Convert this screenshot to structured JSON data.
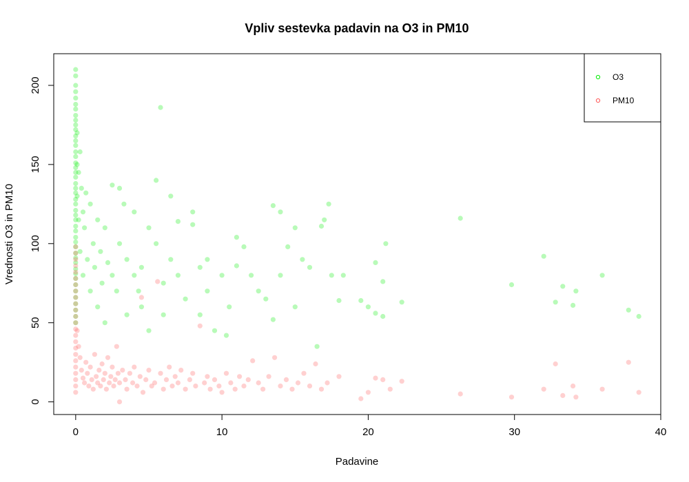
{
  "chart_data": {
    "type": "scatter",
    "title": "Vpliv sestevka padavin na O3 in PM10",
    "xlabel": "Padavine",
    "ylabel": "Vrednosti O3 in PM10",
    "xlim": [
      -1.5,
      40
    ],
    "ylim": [
      -8,
      220
    ],
    "xticks": [
      0,
      10,
      20,
      30,
      40
    ],
    "yticks": [
      0,
      50,
      100,
      150,
      200
    ],
    "legend_position": "top-right",
    "grid": false,
    "series": [
      {
        "name": "O3",
        "color": "#00ee00",
        "points": [
          [
            0,
            210
          ],
          [
            0,
            206
          ],
          [
            0,
            200
          ],
          [
            0,
            196
          ],
          [
            0,
            192
          ],
          [
            0,
            188
          ],
          [
            0,
            185
          ],
          [
            0,
            181
          ],
          [
            0,
            178
          ],
          [
            0,
            175
          ],
          [
            0,
            172
          ],
          [
            0,
            168
          ],
          [
            0,
            165
          ],
          [
            0,
            162
          ],
          [
            0,
            158
          ],
          [
            0,
            155
          ],
          [
            0,
            151
          ],
          [
            0,
            148
          ],
          [
            0,
            145
          ],
          [
            0,
            142
          ],
          [
            0,
            138
          ],
          [
            0,
            135
          ],
          [
            0,
            132
          ],
          [
            0,
            128
          ],
          [
            0,
            125
          ],
          [
            0,
            121
          ],
          [
            0,
            118
          ],
          [
            0,
            115
          ],
          [
            0,
            111
          ],
          [
            0,
            108
          ],
          [
            0,
            104
          ],
          [
            0,
            101
          ],
          [
            0,
            98
          ],
          [
            0,
            94
          ],
          [
            0,
            91
          ],
          [
            0,
            88
          ],
          [
            0,
            84
          ],
          [
            0,
            81
          ],
          [
            0,
            78
          ],
          [
            0,
            74
          ],
          [
            0,
            70
          ],
          [
            0,
            66
          ],
          [
            0,
            62
          ],
          [
            0,
            58
          ],
          [
            0,
            54
          ],
          [
            0,
            50
          ],
          [
            0.1,
            170
          ],
          [
            0.1,
            150
          ],
          [
            0.1,
            130
          ],
          [
            0.2,
            145
          ],
          [
            0.2,
            115
          ],
          [
            0.3,
            158
          ],
          [
            0.3,
            95
          ],
          [
            0.4,
            135
          ],
          [
            0.5,
            120
          ],
          [
            0.5,
            80
          ],
          [
            0.6,
            110
          ],
          [
            0.7,
            132
          ],
          [
            0.8,
            90
          ],
          [
            1.0,
            125
          ],
          [
            1.0,
            70
          ],
          [
            1.2,
            100
          ],
          [
            1.3,
            85
          ],
          [
            1.5,
            115
          ],
          [
            1.5,
            60
          ],
          [
            1.7,
            95
          ],
          [
            1.8,
            75
          ],
          [
            2.0,
            110
          ],
          [
            2.0,
            50
          ],
          [
            2.2,
            88
          ],
          [
            2.5,
            137
          ],
          [
            2.5,
            80
          ],
          [
            2.8,
            70
          ],
          [
            3.0,
            135
          ],
          [
            3.0,
            100
          ],
          [
            3.3,
            125
          ],
          [
            3.5,
            90
          ],
          [
            3.5,
            55
          ],
          [
            4.0,
            120
          ],
          [
            4.0,
            80
          ],
          [
            4.3,
            70
          ],
          [
            4.5,
            85
          ],
          [
            4.5,
            60
          ],
          [
            5.0,
            110
          ],
          [
            5.0,
            45
          ],
          [
            5.5,
            100
          ],
          [
            5.5,
            140
          ],
          [
            5.8,
            186
          ],
          [
            6.0,
            75
          ],
          [
            6.0,
            55
          ],
          [
            6.5,
            90
          ],
          [
            6.5,
            130
          ],
          [
            7.0,
            80
          ],
          [
            7.0,
            114
          ],
          [
            7.5,
            65
          ],
          [
            8.0,
            120
          ],
          [
            8.0,
            112
          ],
          [
            8.5,
            85
          ],
          [
            8.5,
            55
          ],
          [
            9.0,
            90
          ],
          [
            9.0,
            70
          ],
          [
            9.5,
            45
          ],
          [
            10.0,
            80
          ],
          [
            10.3,
            42
          ],
          [
            10.5,
            60
          ],
          [
            11.0,
            104
          ],
          [
            11.0,
            86
          ],
          [
            11.5,
            98
          ],
          [
            12.0,
            80
          ],
          [
            12.5,
            70
          ],
          [
            13.0,
            65
          ],
          [
            13.5,
            124
          ],
          [
            13.5,
            52
          ],
          [
            14.0,
            120
          ],
          [
            14.0,
            80
          ],
          [
            14.5,
            98
          ],
          [
            15.0,
            110
          ],
          [
            15.0,
            60
          ],
          [
            15.5,
            90
          ],
          [
            16.0,
            85
          ],
          [
            16.5,
            35
          ],
          [
            16.8,
            111
          ],
          [
            17.0,
            115
          ],
          [
            17.3,
            125
          ],
          [
            17.5,
            80
          ],
          [
            18.0,
            64
          ],
          [
            18.3,
            80
          ],
          [
            19.5,
            64
          ],
          [
            20.0,
            60
          ],
          [
            20.5,
            56
          ],
          [
            20.5,
            88
          ],
          [
            21.0,
            54
          ],
          [
            21.2,
            100
          ],
          [
            21.0,
            76
          ],
          [
            22.3,
            63
          ],
          [
            26.3,
            116
          ],
          [
            29.8,
            74
          ],
          [
            32.0,
            92
          ],
          [
            32.8,
            63
          ],
          [
            33.3,
            73
          ],
          [
            34.0,
            61
          ],
          [
            34.2,
            70
          ],
          [
            36.0,
            80
          ],
          [
            37.8,
            58
          ],
          [
            38.5,
            54
          ]
        ]
      },
      {
        "name": "PM10",
        "color": "#ff5555",
        "points": [
          [
            0,
            98
          ],
          [
            0,
            94
          ],
          [
            0,
            90
          ],
          [
            0,
            86
          ],
          [
            0,
            82
          ],
          [
            0,
            78
          ],
          [
            0,
            74
          ],
          [
            0,
            70
          ],
          [
            0,
            66
          ],
          [
            0,
            62
          ],
          [
            0,
            58
          ],
          [
            0,
            54
          ],
          [
            0,
            50
          ],
          [
            0,
            46
          ],
          [
            0,
            42
          ],
          [
            0,
            38
          ],
          [
            0,
            34
          ],
          [
            0,
            30
          ],
          [
            0,
            26
          ],
          [
            0,
            22
          ],
          [
            0,
            18
          ],
          [
            0,
            14
          ],
          [
            0,
            10
          ],
          [
            0,
            6
          ],
          [
            0.1,
            45
          ],
          [
            0.2,
            35
          ],
          [
            0.3,
            28
          ],
          [
            0.4,
            20
          ],
          [
            0.5,
            15
          ],
          [
            0.6,
            12
          ],
          [
            0.7,
            25
          ],
          [
            0.8,
            18
          ],
          [
            0.9,
            10
          ],
          [
            1.0,
            22
          ],
          [
            1.1,
            14
          ],
          [
            1.2,
            8
          ],
          [
            1.3,
            30
          ],
          [
            1.4,
            16
          ],
          [
            1.5,
            12
          ],
          [
            1.6,
            20
          ],
          [
            1.7,
            10
          ],
          [
            1.8,
            24
          ],
          [
            1.9,
            14
          ],
          [
            2.0,
            18
          ],
          [
            2.1,
            8
          ],
          [
            2.2,
            28
          ],
          [
            2.3,
            12
          ],
          [
            2.4,
            16
          ],
          [
            2.5,
            22
          ],
          [
            2.6,
            10
          ],
          [
            2.7,
            14
          ],
          [
            2.8,
            35
          ],
          [
            2.9,
            18
          ],
          [
            3.0,
            12
          ],
          [
            3.0,
            0
          ],
          [
            3.2,
            20
          ],
          [
            3.4,
            14
          ],
          [
            3.5,
            8
          ],
          [
            3.7,
            18
          ],
          [
            3.9,
            12
          ],
          [
            4.0,
            22
          ],
          [
            4.2,
            10
          ],
          [
            4.4,
            16
          ],
          [
            4.5,
            66
          ],
          [
            4.6,
            6
          ],
          [
            4.8,
            14
          ],
          [
            5.0,
            20
          ],
          [
            5.2,
            10
          ],
          [
            5.4,
            12
          ],
          [
            5.6,
            76
          ],
          [
            5.8,
            18
          ],
          [
            6.0,
            8
          ],
          [
            6.2,
            14
          ],
          [
            6.4,
            22
          ],
          [
            6.6,
            10
          ],
          [
            6.8,
            16
          ],
          [
            7.0,
            12
          ],
          [
            7.2,
            20
          ],
          [
            7.5,
            8
          ],
          [
            7.8,
            14
          ],
          [
            8.0,
            18
          ],
          [
            8.2,
            10
          ],
          [
            8.5,
            48
          ],
          [
            8.8,
            12
          ],
          [
            9.0,
            16
          ],
          [
            9.2,
            8
          ],
          [
            9.5,
            14
          ],
          [
            9.8,
            10
          ],
          [
            10.0,
            6
          ],
          [
            10.3,
            18
          ],
          [
            10.6,
            12
          ],
          [
            10.9,
            8
          ],
          [
            11.2,
            16
          ],
          [
            11.5,
            10
          ],
          [
            11.8,
            14
          ],
          [
            12.1,
            26
          ],
          [
            12.5,
            12
          ],
          [
            12.8,
            8
          ],
          [
            13.2,
            16
          ],
          [
            13.6,
            28
          ],
          [
            14.0,
            10
          ],
          [
            14.4,
            14
          ],
          [
            14.8,
            8
          ],
          [
            15.2,
            12
          ],
          [
            15.6,
            18
          ],
          [
            16.0,
            10
          ],
          [
            16.4,
            24
          ],
          [
            16.8,
            8
          ],
          [
            17.2,
            12
          ],
          [
            18.0,
            16
          ],
          [
            19.5,
            2
          ],
          [
            20.0,
            6
          ],
          [
            20.5,
            15
          ],
          [
            21.0,
            14
          ],
          [
            21.5,
            8
          ],
          [
            22.3,
            13
          ],
          [
            26.3,
            5
          ],
          [
            29.8,
            3
          ],
          [
            32.0,
            8
          ],
          [
            32.8,
            24
          ],
          [
            33.3,
            4
          ],
          [
            34.0,
            10
          ],
          [
            34.2,
            3
          ],
          [
            36.0,
            8
          ],
          [
            37.8,
            25
          ],
          [
            38.5,
            6
          ]
        ]
      }
    ]
  }
}
